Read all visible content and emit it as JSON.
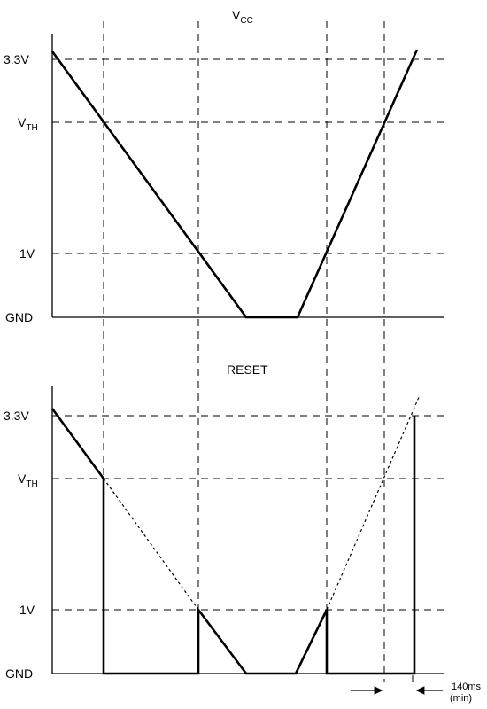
{
  "top_panel": {
    "title_main": "V",
    "title_sub": "CC",
    "levels": {
      "v33": "3.3V",
      "vth_main": "V",
      "vth_sub": "TH",
      "v1": "1V",
      "gnd": "GND"
    }
  },
  "bottom_panel": {
    "title": "RESET",
    "levels": {
      "v33": "3.3V",
      "vth_main": "V",
      "vth_sub": "TH",
      "v1": "1V",
      "gnd": "GND"
    }
  },
  "timing_annotation": {
    "line1": "140ms",
    "line2": "(min)"
  }
}
